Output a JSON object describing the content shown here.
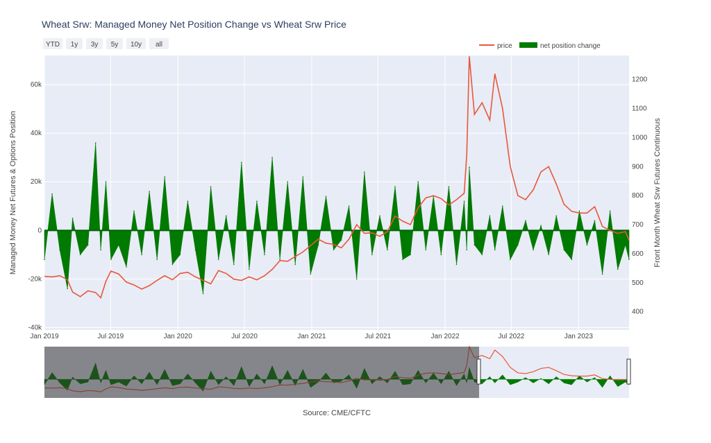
{
  "title": "Wheat Srw: Managed Money Net Position Change vs Wheat Srw Price",
  "range_buttons": [
    "YTD",
    "1y",
    "3y",
    "5y",
    "10y",
    "all"
  ],
  "legend": {
    "price": "price",
    "net_change": "net position change"
  },
  "source": "Source: CME/CFTC",
  "colors": {
    "price": "#e8573a",
    "net_change": "#007a00",
    "background": "#e8ecf6",
    "grid": "#ffffff"
  },
  "chart_data": {
    "type": "bar+line",
    "title": "Wheat Srw: Managed Money Net Position Change vs Wheat Srw Price",
    "ylabel": "Managed Money Net Futures & Options Position",
    "y2label": "Front Month Wheat Srw Futures Continuous",
    "ylim": [
      -41000,
      72000
    ],
    "y2lim": [
      337,
      1283
    ],
    "yticks": [
      -40000,
      -20000,
      0,
      20000,
      40000,
      60000
    ],
    "ytick_labels": [
      "-40k",
      "-20k",
      "0",
      "20k",
      "40k",
      "60k"
    ],
    "y2ticks": [
      400,
      500,
      600,
      700,
      800,
      900,
      1000,
      1100,
      1200
    ],
    "xticks": [
      "2019-01-01",
      "2019-07-01",
      "2020-01-01",
      "2020-07-01",
      "2021-01-01",
      "2021-07-01",
      "2022-01-01",
      "2022-07-01",
      "2023-01-01"
    ],
    "xtick_labels": [
      "Jan 2019",
      "Jul 2019",
      "Jan 2020",
      "Jul 2020",
      "Jan 2021",
      "Jul 2021",
      "Jan 2022",
      "Jul 2022",
      "Jan 2023"
    ],
    "xrange": [
      "2019-01-01",
      "2023-05-19"
    ],
    "grid": true,
    "legend_position": "top-right",
    "series": [
      {
        "name": "price",
        "type": "line",
        "axis": "right",
        "x": [
          "2019-01-01",
          "2019-01-22",
          "2019-02-12",
          "2019-03-05",
          "2019-03-19",
          "2019-04-09",
          "2019-04-30",
          "2019-05-21",
          "2019-06-04",
          "2019-06-18",
          "2019-07-02",
          "2019-07-23",
          "2019-08-13",
          "2019-09-03",
          "2019-09-24",
          "2019-10-15",
          "2019-11-05",
          "2019-11-26",
          "2019-12-17",
          "2020-01-07",
          "2020-01-28",
          "2020-02-18",
          "2020-03-10",
          "2020-03-31",
          "2020-04-21",
          "2020-05-12",
          "2020-06-02",
          "2020-06-23",
          "2020-07-14",
          "2020-08-04",
          "2020-08-25",
          "2020-09-15",
          "2020-10-06",
          "2020-10-27",
          "2020-11-17",
          "2020-12-08",
          "2020-12-29",
          "2021-01-19",
          "2021-02-09",
          "2021-03-02",
          "2021-03-23",
          "2021-04-13",
          "2021-05-04",
          "2021-05-25",
          "2021-06-15",
          "2021-07-06",
          "2021-07-27",
          "2021-08-17",
          "2021-09-07",
          "2021-09-28",
          "2021-10-19",
          "2021-11-09",
          "2021-11-30",
          "2021-12-21",
          "2022-01-11",
          "2022-02-01",
          "2022-02-22",
          "2022-03-01",
          "2022-03-08",
          "2022-03-22",
          "2022-04-12",
          "2022-05-03",
          "2022-05-17",
          "2022-06-07",
          "2022-06-28",
          "2022-07-19",
          "2022-08-09",
          "2022-08-30",
          "2022-09-20",
          "2022-10-11",
          "2022-11-01",
          "2022-11-22",
          "2022-12-13",
          "2023-01-03",
          "2023-01-24",
          "2023-02-14",
          "2023-03-07",
          "2023-03-28",
          "2023-04-18",
          "2023-05-09",
          "2023-05-19"
        ],
        "y": [
          522,
          520,
          524,
          510,
          468,
          452,
          472,
          466,
          448,
          505,
          540,
          530,
          502,
          492,
          478,
          490,
          508,
          524,
          510,
          532,
          536,
          520,
          508,
          496,
          542,
          532,
          512,
          508,
          520,
          510,
          524,
          546,
          576,
          574,
          590,
          606,
          628,
          650,
          636,
          632,
          620,
          650,
          700,
          670,
          672,
          660,
          676,
          730,
          712,
          700,
          758,
          792,
          800,
          790,
          768,
          786,
          808,
          940,
          1280,
          1080,
          1120,
          1060,
          1220,
          1100,
          900,
          800,
          786,
          820,
          882,
          900,
          840,
          770,
          746,
          740,
          740,
          762,
          694,
          680,
          670,
          676,
          646
        ]
      },
      {
        "name": "net position change",
        "type": "area",
        "axis": "left",
        "x": [
          "2019-01-01",
          "2019-01-22",
          "2019-02-12",
          "2019-03-05",
          "2019-03-19",
          "2019-04-09",
          "2019-04-30",
          "2019-05-21",
          "2019-06-04",
          "2019-06-18",
          "2019-07-02",
          "2019-07-23",
          "2019-08-13",
          "2019-09-03",
          "2019-09-24",
          "2019-10-15",
          "2019-11-05",
          "2019-11-26",
          "2019-12-17",
          "2020-01-07",
          "2020-01-28",
          "2020-02-18",
          "2020-03-10",
          "2020-03-31",
          "2020-04-21",
          "2020-05-12",
          "2020-06-02",
          "2020-06-23",
          "2020-07-14",
          "2020-08-04",
          "2020-08-25",
          "2020-09-15",
          "2020-10-06",
          "2020-10-27",
          "2020-11-17",
          "2020-12-08",
          "2020-12-29",
          "2021-01-19",
          "2021-02-09",
          "2021-03-02",
          "2021-03-23",
          "2021-04-13",
          "2021-05-04",
          "2021-05-25",
          "2021-06-15",
          "2021-07-06",
          "2021-07-27",
          "2021-08-17",
          "2021-09-07",
          "2021-09-28",
          "2021-10-19",
          "2021-11-09",
          "2021-11-30",
          "2021-12-21",
          "2022-01-11",
          "2022-02-01",
          "2022-02-22",
          "2022-03-01",
          "2022-03-08",
          "2022-03-22",
          "2022-04-12",
          "2022-05-03",
          "2022-05-17",
          "2022-06-07",
          "2022-06-28",
          "2022-07-19",
          "2022-08-09",
          "2022-08-30",
          "2022-09-20",
          "2022-10-11",
          "2022-11-01",
          "2022-11-22",
          "2022-12-13",
          "2023-01-03",
          "2023-01-24",
          "2023-02-14",
          "2023-03-07",
          "2023-03-28",
          "2023-04-18",
          "2023-05-09",
          "2023-05-19"
        ],
        "y": [
          -12000,
          15000,
          -8000,
          -24000,
          5000,
          -10000,
          -6000,
          36000,
          -8000,
          20000,
          -12000,
          -6000,
          -15000,
          8000,
          -10000,
          16000,
          -12000,
          22000,
          -14000,
          -10000,
          12000,
          -8000,
          -26000,
          18000,
          -12000,
          6000,
          -14000,
          28000,
          -16000,
          12000,
          -10000,
          30000,
          -12000,
          20000,
          -14000,
          22000,
          -18000,
          -6000,
          14000,
          -8000,
          -4000,
          10000,
          -20000,
          24000,
          -10000,
          6000,
          -8000,
          18000,
          -12000,
          -10000,
          20000,
          -8000,
          14000,
          -10000,
          18000,
          -14000,
          12000,
          -8000,
          26000,
          -6000,
          -10000,
          6000,
          -8000,
          10000,
          -12000,
          -6000,
          4000,
          -8000,
          2000,
          -10000,
          6000,
          -8000,
          -12000,
          8000,
          -6000,
          4000,
          -18000,
          8000,
          -16000,
          -6000,
          -12000
        ]
      }
    ]
  }
}
